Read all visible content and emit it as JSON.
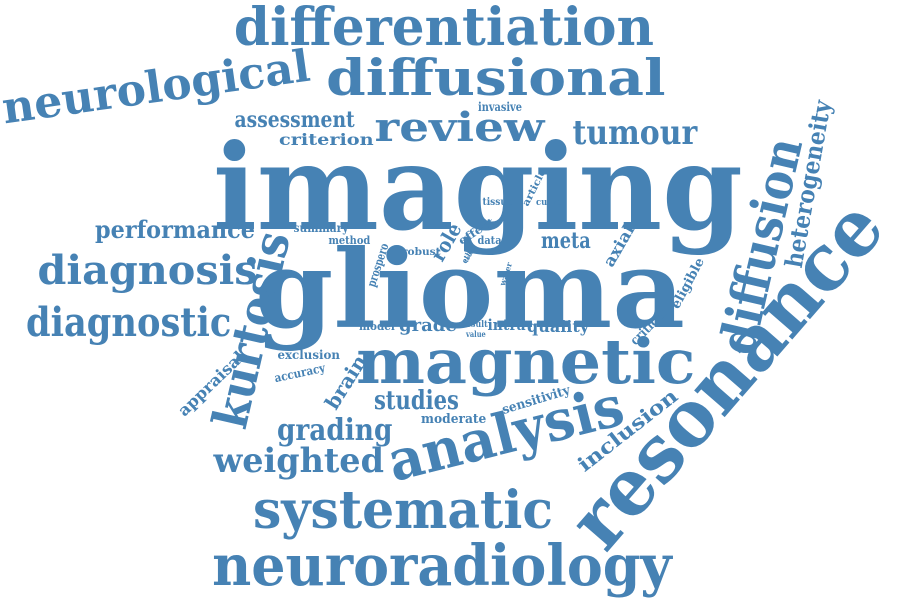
{
  "color": "#4682B4",
  "words": [
    {
      "text": "imaging"
    },
    {
      "text": "glioma"
    },
    {
      "text": "resonance"
    },
    {
      "text": "magnetic"
    },
    {
      "text": "analysis"
    },
    {
      "text": "neuroradiology"
    },
    {
      "text": "systematic"
    },
    {
      "text": "differentiation"
    },
    {
      "text": "diffusional"
    },
    {
      "text": "neurological"
    },
    {
      "text": "diffusion"
    },
    {
      "text": "kurtosis"
    },
    {
      "text": "review"
    },
    {
      "text": "diagnosis"
    },
    {
      "text": "diagnostic"
    },
    {
      "text": "tumour"
    },
    {
      "text": "heterogeneity"
    },
    {
      "text": "weighted"
    },
    {
      "text": "grading"
    },
    {
      "text": "studies"
    },
    {
      "text": "performance"
    },
    {
      "text": "assessment"
    },
    {
      "text": "inclusion"
    },
    {
      "text": "brain"
    },
    {
      "text": "meta"
    },
    {
      "text": "criterion"
    },
    {
      "text": "appraisal"
    },
    {
      "text": "grade"
    },
    {
      "text": "quality"
    },
    {
      "text": "axial"
    },
    {
      "text": "eligible"
    },
    {
      "text": "critical"
    },
    {
      "text": "sensitivity"
    },
    {
      "text": "moderate"
    },
    {
      "text": "exclusion"
    },
    {
      "text": "accuracy"
    },
    {
      "text": "role"
    },
    {
      "text": "intra"
    },
    {
      "text": "summary"
    },
    {
      "text": "method"
    },
    {
      "text": "effect"
    },
    {
      "text": "prospero"
    },
    {
      "text": "robust"
    },
    {
      "text": "data"
    },
    {
      "text": "model"
    },
    {
      "text": "invasive"
    },
    {
      "text": "article"
    },
    {
      "text": "tissue"
    },
    {
      "text": "curve"
    },
    {
      "text": "result"
    },
    {
      "text": "value"
    },
    {
      "text": "water"
    },
    {
      "text": "ethic"
    },
    {
      "text": "tool"
    }
  ]
}
